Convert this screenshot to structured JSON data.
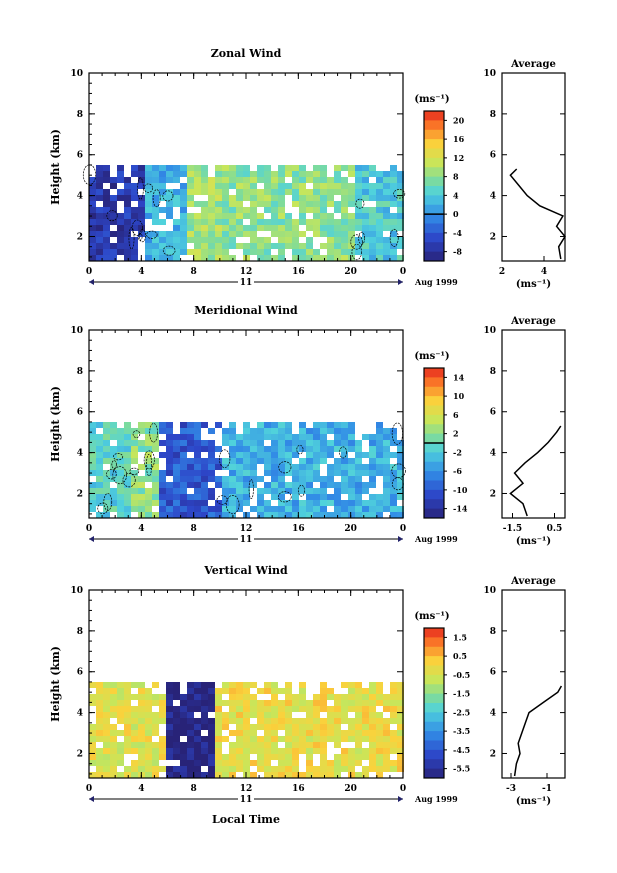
{
  "shared": {
    "ylabel": "Height (km)",
    "y_ticks": [
      "2",
      "4",
      "6",
      "8",
      "10"
    ],
    "ylim": [
      0.8,
      10
    ],
    "x_ticks": [
      "0",
      "4",
      "8",
      "12",
      "16",
      "20",
      "0"
    ],
    "day_label": "11",
    "date_label": "Aug 1999",
    "xlabel": "Local Time",
    "unit_label": "(ms⁻¹)",
    "avg_title": "Average",
    "avg_unit": "(ms⁻¹)"
  },
  "chart_data": [
    {
      "type": "heatmap",
      "title": "Zonal Wind",
      "colorbar_ticks": [
        "20",
        "16",
        "12",
        "8",
        "4",
        "0",
        "-4",
        "-8"
      ],
      "colorbar_range": [
        -10,
        22
      ],
      "contour_at": 0,
      "data_top_km": 5.3,
      "bands": [
        {
          "t0": 0,
          "t1": 4,
          "level": -7
        },
        {
          "t0": 4,
          "t1": 7,
          "level": 2
        },
        {
          "t0": 7,
          "t1": 10,
          "level": 9
        },
        {
          "t0": 10,
          "t1": 20,
          "level": 8
        },
        {
          "t0": 20,
          "t1": 24,
          "level": 4
        }
      ],
      "avg_profile": {
        "xlim": [
          2,
          5
        ],
        "x_ticks": [
          "2",
          "4"
        ],
        "y_ticks": [
          "2",
          "4",
          "6",
          "8",
          "10"
        ],
        "points": [
          [
            4.8,
            0.9
          ],
          [
            4.7,
            1.5
          ],
          [
            5.0,
            2.0
          ],
          [
            4.6,
            2.5
          ],
          [
            4.9,
            3.0
          ],
          [
            3.8,
            3.5
          ],
          [
            3.2,
            4.0
          ],
          [
            2.8,
            4.5
          ],
          [
            2.4,
            5.0
          ],
          [
            2.7,
            5.3
          ]
        ]
      }
    },
    {
      "type": "heatmap",
      "title": "Meridional Wind",
      "colorbar_ticks": [
        "14",
        "10",
        "6",
        "2",
        "-2",
        "-6",
        "-10",
        "-14"
      ],
      "colorbar_range": [
        -16,
        16
      ],
      "contour_at": 0,
      "data_top_km": 5.3,
      "bands": [
        {
          "t0": 0,
          "t1": 3,
          "level": -1
        },
        {
          "t0": 3,
          "t1": 5,
          "level": 2
        },
        {
          "t0": 5,
          "t1": 10,
          "level": -10
        },
        {
          "t0": 10,
          "t1": 16,
          "level": -4
        },
        {
          "t0": 16,
          "t1": 24,
          "level": -4
        }
      ],
      "avg_profile": {
        "xlim": [
          -2,
          1
        ],
        "x_ticks": [
          "-1.5",
          "0.5"
        ],
        "y_ticks": [
          "2",
          "4",
          "6",
          "8",
          "10"
        ],
        "points": [
          [
            -0.8,
            0.9
          ],
          [
            -1.0,
            1.5
          ],
          [
            -1.6,
            2.0
          ],
          [
            -1.0,
            2.5
          ],
          [
            -1.4,
            3.0
          ],
          [
            -0.9,
            3.5
          ],
          [
            -0.3,
            4.0
          ],
          [
            0.2,
            4.5
          ],
          [
            0.6,
            5.0
          ],
          [
            0.8,
            5.3
          ]
        ]
      }
    },
    {
      "type": "heatmap",
      "title": "Vertical Wind",
      "colorbar_ticks": [
        "1.5",
        "0.5",
        "-0.5",
        "-1.5",
        "-2.5",
        "-3.5",
        "-4.5",
        "-5.5"
      ],
      "colorbar_range": [
        -6,
        2
      ],
      "contour_at": null,
      "data_top_km": 5.3,
      "bands": [
        {
          "t0": 0,
          "t1": 5.5,
          "level": -0.3
        },
        {
          "t0": 5.5,
          "t1": 9.5,
          "level": -6
        },
        {
          "t0": 9.5,
          "t1": 24,
          "level": -0.2
        }
      ],
      "avg_profile": {
        "xlim": [
          -3.5,
          0
        ],
        "x_ticks": [
          "-3",
          "-1"
        ],
        "y_ticks": [
          "2",
          "4",
          "6",
          "8",
          "10"
        ],
        "points": [
          [
            -2.8,
            0.9
          ],
          [
            -2.7,
            1.5
          ],
          [
            -2.5,
            2.0
          ],
          [
            -2.6,
            2.5
          ],
          [
            -2.4,
            3.0
          ],
          [
            -2.2,
            3.5
          ],
          [
            -2.0,
            4.0
          ],
          [
            -1.2,
            4.5
          ],
          [
            -0.4,
            5.0
          ],
          [
            -0.2,
            5.3
          ]
        ]
      }
    }
  ]
}
